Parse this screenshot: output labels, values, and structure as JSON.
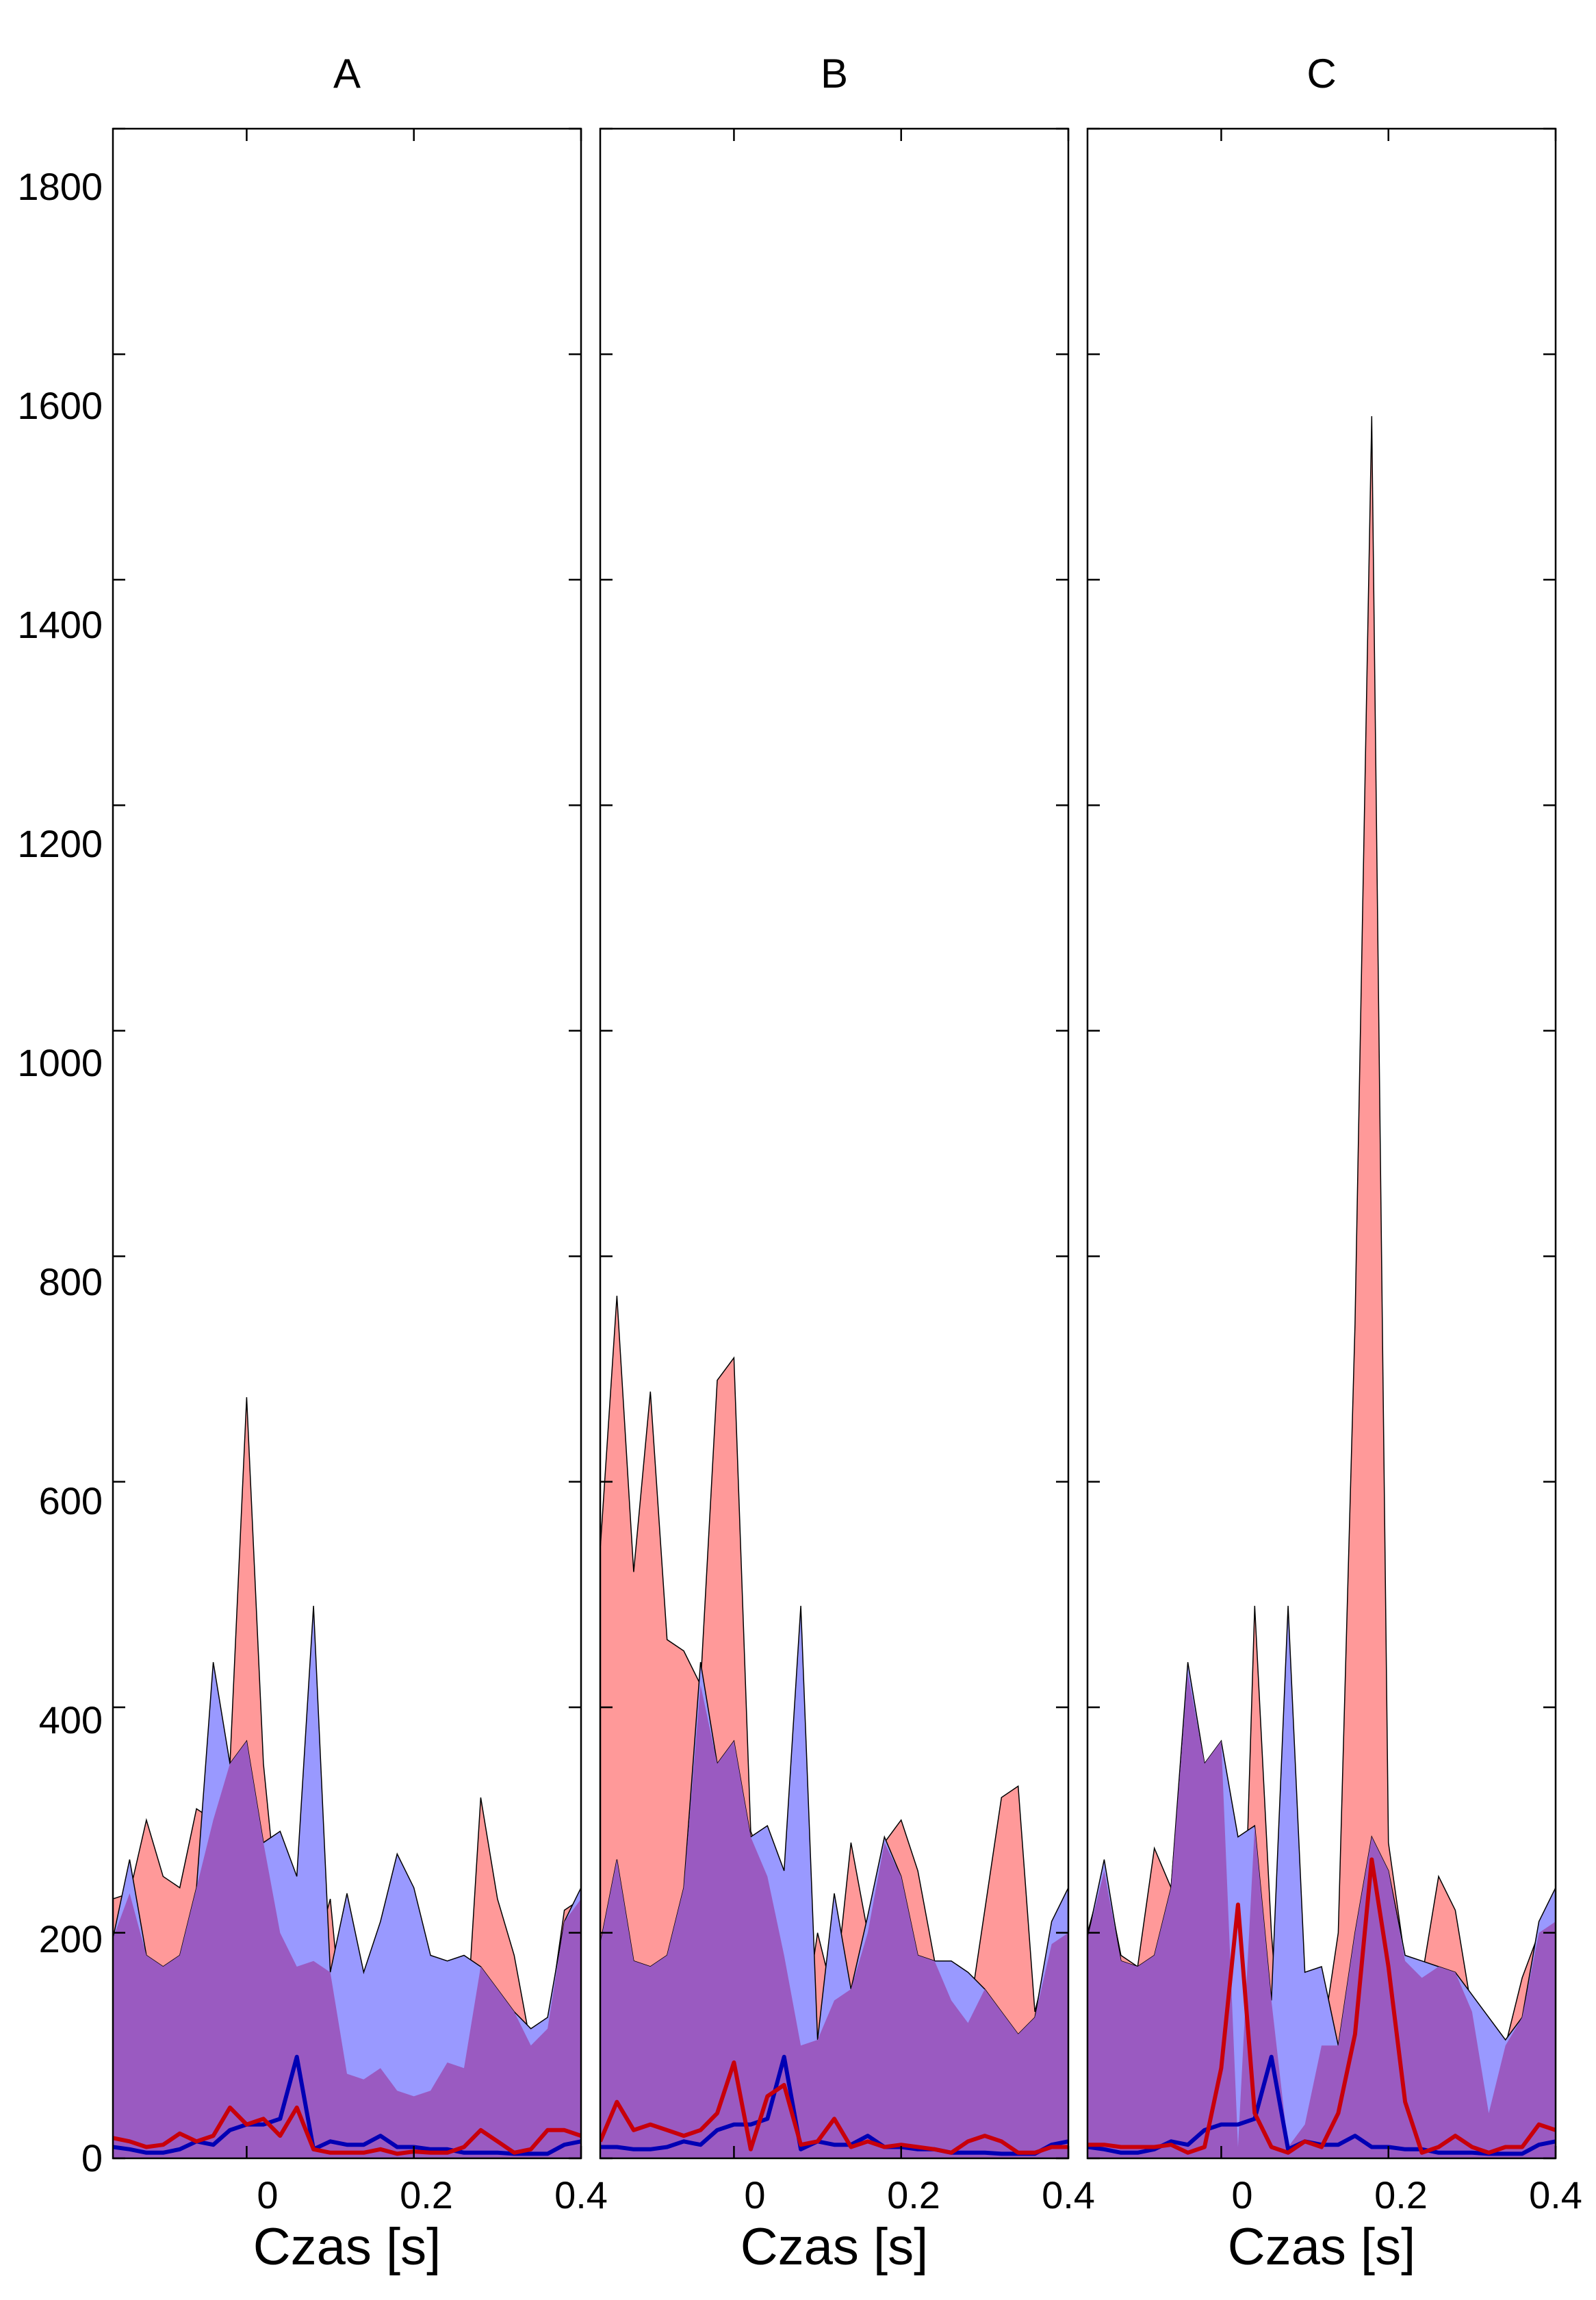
{
  "colors": {
    "red_fill": "#FF9999",
    "blue_fill": "#9999FF",
    "overlap_fill": "#9A5AC1",
    "red_line": "#C8000A",
    "blue_line": "#0000B4",
    "axis": "#000000"
  },
  "y_ticks": [
    "0",
    "200",
    "400",
    "600",
    "800",
    "1000",
    "1200",
    "1400",
    "1600",
    "1800"
  ],
  "chart_data": [
    {
      "type": "area",
      "title": "A",
      "xlabel": "Czas [s]",
      "ylabel": "",
      "xlim": [
        -0.16,
        0.4
      ],
      "ylim": [
        0,
        1800
      ],
      "x_ticks": [
        "0",
        "0.2",
        "0.4"
      ],
      "grid": false,
      "series": [
        {
          "style": "filled-area",
          "color": "red",
          "x": [
            -0.16,
            -0.14,
            -0.12,
            -0.1,
            -0.08,
            -0.06,
            -0.04,
            -0.02,
            0.0,
            0.02,
            0.04,
            0.06,
            0.08,
            0.1,
            0.12,
            0.14,
            0.16,
            0.18,
            0.2,
            0.22,
            0.24,
            0.26,
            0.28,
            0.3,
            0.32,
            0.34,
            0.36,
            0.38,
            0.4
          ],
          "y": [
            230,
            235,
            300,
            250,
            240,
            310,
            300,
            350,
            675,
            350,
            200,
            170,
            175,
            230,
            75,
            70,
            80,
            60,
            55,
            60,
            85,
            80,
            320,
            230,
            180,
            100,
            115,
            220,
            230
          ]
        },
        {
          "style": "filled-area",
          "color": "blue",
          "x": [
            -0.16,
            -0.14,
            -0.12,
            -0.1,
            -0.08,
            -0.06,
            -0.04,
            -0.02,
            0.0,
            0.02,
            0.04,
            0.06,
            0.08,
            0.1,
            0.12,
            0.14,
            0.16,
            0.18,
            0.2,
            0.22,
            0.24,
            0.26,
            0.28,
            0.3,
            0.32,
            0.34,
            0.36,
            0.38,
            0.4
          ],
          "y": [
            195,
            265,
            180,
            170,
            180,
            240,
            440,
            350,
            370,
            280,
            290,
            250,
            490,
            165,
            235,
            165,
            210,
            270,
            240,
            180,
            175,
            180,
            170,
            150,
            130,
            115,
            125,
            210,
            240
          ]
        },
        {
          "style": "line",
          "color": "red",
          "x": [
            -0.16,
            -0.14,
            -0.12,
            -0.1,
            -0.08,
            -0.06,
            -0.04,
            -0.02,
            0.0,
            0.02,
            0.04,
            0.06,
            0.08,
            0.1,
            0.12,
            0.14,
            0.16,
            0.18,
            0.2,
            0.22,
            0.24,
            0.26,
            0.28,
            0.3,
            0.32,
            0.34,
            0.36,
            0.38,
            0.4
          ],
          "y": [
            18,
            15,
            10,
            12,
            22,
            15,
            20,
            45,
            30,
            35,
            20,
            45,
            8,
            5,
            5,
            5,
            8,
            4,
            6,
            5,
            5,
            10,
            25,
            15,
            5,
            8,
            25,
            25,
            20
          ]
        },
        {
          "style": "line",
          "color": "blue",
          "x": [
            -0.16,
            -0.14,
            -0.12,
            -0.1,
            -0.08,
            -0.06,
            -0.04,
            -0.02,
            0.0,
            0.02,
            0.04,
            0.06,
            0.08,
            0.1,
            0.12,
            0.14,
            0.16,
            0.18,
            0.2,
            0.22,
            0.24,
            0.26,
            0.28,
            0.3,
            0.32,
            0.34,
            0.36,
            0.38,
            0.4
          ],
          "y": [
            10,
            8,
            5,
            5,
            8,
            15,
            12,
            25,
            30,
            30,
            35,
            90,
            8,
            15,
            12,
            12,
            20,
            10,
            10,
            8,
            8,
            5,
            5,
            5,
            4,
            4,
            4,
            12,
            15
          ]
        }
      ]
    },
    {
      "type": "area",
      "title": "B",
      "xlabel": "Czas [s]",
      "ylabel": "",
      "xlim": [
        -0.16,
        0.4
      ],
      "ylim": [
        0,
        1800
      ],
      "x_ticks": [
        "0",
        "0.2",
        "0.4"
      ],
      "grid": false,
      "series": [
        {
          "style": "filled-area",
          "color": "red",
          "x": [
            -0.16,
            -0.14,
            -0.12,
            -0.1,
            -0.08,
            -0.06,
            -0.04,
            -0.02,
            0.0,
            0.02,
            0.04,
            0.06,
            0.08,
            0.1,
            0.12,
            0.14,
            0.16,
            0.18,
            0.2,
            0.22,
            0.24,
            0.26,
            0.28,
            0.3,
            0.32,
            0.34,
            0.36,
            0.38,
            0.4
          ],
          "y": [
            540,
            765,
            520,
            680,
            460,
            450,
            420,
            690,
            710,
            290,
            250,
            180,
            100,
            200,
            140,
            280,
            200,
            280,
            300,
            255,
            175,
            140,
            120,
            220,
            320,
            330,
            130,
            190,
            200
          ]
        },
        {
          "style": "filled-area",
          "color": "blue",
          "x": [
            -0.16,
            -0.14,
            -0.12,
            -0.1,
            -0.08,
            -0.06,
            -0.04,
            -0.02,
            0.0,
            0.02,
            0.04,
            0.06,
            0.08,
            0.1,
            0.12,
            0.14,
            0.16,
            0.18,
            0.2,
            0.22,
            0.24,
            0.26,
            0.28,
            0.3,
            0.32,
            0.34,
            0.36,
            0.38,
            0.4
          ],
          "y": [
            190,
            265,
            175,
            170,
            180,
            240,
            440,
            350,
            370,
            285,
            295,
            255,
            490,
            105,
            235,
            150,
            215,
            285,
            250,
            180,
            175,
            175,
            165,
            150,
            130,
            110,
            125,
            210,
            240
          ]
        },
        {
          "style": "line",
          "color": "red",
          "x": [
            -0.16,
            -0.14,
            -0.12,
            -0.1,
            -0.08,
            -0.06,
            -0.04,
            -0.02,
            0.0,
            0.02,
            0.04,
            0.06,
            0.08,
            0.1,
            0.12,
            0.14,
            0.16,
            0.18,
            0.2,
            0.22,
            0.24,
            0.26,
            0.28,
            0.3,
            0.32,
            0.34,
            0.36,
            0.38,
            0.4
          ],
          "y": [
            15,
            50,
            25,
            30,
            25,
            20,
            25,
            40,
            85,
            8,
            55,
            65,
            12,
            15,
            35,
            10,
            15,
            10,
            12,
            10,
            8,
            5,
            15,
            20,
            15,
            5,
            5,
            10,
            10
          ]
        },
        {
          "style": "line",
          "color": "blue",
          "x": [
            -0.16,
            -0.14,
            -0.12,
            -0.1,
            -0.08,
            -0.06,
            -0.04,
            -0.02,
            0.0,
            0.02,
            0.04,
            0.06,
            0.08,
            0.1,
            0.12,
            0.14,
            0.16,
            0.18,
            0.2,
            0.22,
            0.24,
            0.26,
            0.28,
            0.3,
            0.32,
            0.34,
            0.36,
            0.38,
            0.4
          ],
          "y": [
            10,
            10,
            8,
            8,
            10,
            15,
            12,
            25,
            30,
            30,
            35,
            90,
            8,
            15,
            12,
            12,
            20,
            10,
            10,
            8,
            8,
            5,
            5,
            5,
            4,
            4,
            4,
            12,
            15
          ]
        }
      ]
    },
    {
      "type": "area",
      "title": "C",
      "xlabel": "Czas [s]",
      "ylabel": "",
      "xlim": [
        -0.16,
        0.4
      ],
      "ylim": [
        0,
        1800
      ],
      "x_ticks": [
        "0",
        "0.2",
        "0.4"
      ],
      "grid": false,
      "series": [
        {
          "style": "filled-area",
          "color": "red",
          "x": [
            -0.16,
            -0.14,
            -0.12,
            -0.1,
            -0.08,
            -0.06,
            -0.04,
            -0.02,
            0.0,
            0.02,
            0.04,
            0.06,
            0.08,
            0.1,
            0.12,
            0.14,
            0.16,
            0.18,
            0.2,
            0.22,
            0.24,
            0.26,
            0.28,
            0.3,
            0.32,
            0.34,
            0.36,
            0.38,
            0.4
          ],
          "y": [
            200,
            255,
            180,
            170,
            275,
            240,
            430,
            350,
            370,
            10,
            490,
            200,
            10,
            30,
            100,
            200,
            740,
            1545,
            280,
            175,
            160,
            250,
            220,
            130,
            40,
            100,
            160,
            200,
            210
          ]
        },
        {
          "style": "filled-area",
          "color": "blue",
          "x": [
            -0.16,
            -0.14,
            -0.12,
            -0.1,
            -0.08,
            -0.06,
            -0.04,
            -0.02,
            0.0,
            0.02,
            0.04,
            0.06,
            0.08,
            0.1,
            0.12,
            0.14,
            0.16,
            0.18,
            0.2,
            0.22,
            0.24,
            0.26,
            0.28,
            0.3,
            0.32,
            0.34,
            0.36,
            0.38,
            0.4
          ],
          "y": [
            195,
            265,
            175,
            170,
            180,
            240,
            440,
            350,
            370,
            285,
            295,
            140,
            490,
            165,
            170,
            100,
            200,
            285,
            255,
            180,
            175,
            170,
            165,
            145,
            125,
            105,
            125,
            210,
            240
          ]
        },
        {
          "style": "line",
          "color": "red",
          "x": [
            -0.16,
            -0.14,
            -0.12,
            -0.1,
            -0.08,
            -0.06,
            -0.04,
            -0.02,
            0.0,
            0.02,
            0.04,
            0.06,
            0.08,
            0.1,
            0.12,
            0.14,
            0.16,
            0.18,
            0.2,
            0.22,
            0.24,
            0.26,
            0.28,
            0.3,
            0.32,
            0.34,
            0.36,
            0.38,
            0.4
          ],
          "y": [
            12,
            12,
            10,
            10,
            10,
            12,
            5,
            10,
            80,
            225,
            40,
            10,
            5,
            15,
            10,
            40,
            110,
            265,
            170,
            50,
            5,
            10,
            20,
            10,
            5,
            10,
            10,
            30,
            25
          ]
        },
        {
          "style": "line",
          "color": "blue",
          "x": [
            -0.16,
            -0.14,
            -0.12,
            -0.1,
            -0.08,
            -0.06,
            -0.04,
            -0.02,
            0.0,
            0.02,
            0.04,
            0.06,
            0.08,
            0.1,
            0.12,
            0.14,
            0.16,
            0.18,
            0.2,
            0.22,
            0.24,
            0.26,
            0.28,
            0.3,
            0.32,
            0.34,
            0.36,
            0.38,
            0.4
          ],
          "y": [
            10,
            8,
            5,
            5,
            8,
            15,
            12,
            25,
            30,
            30,
            35,
            90,
            8,
            15,
            12,
            12,
            20,
            10,
            10,
            8,
            8,
            5,
            5,
            5,
            4,
            4,
            4,
            12,
            15
          ]
        }
      ]
    }
  ]
}
